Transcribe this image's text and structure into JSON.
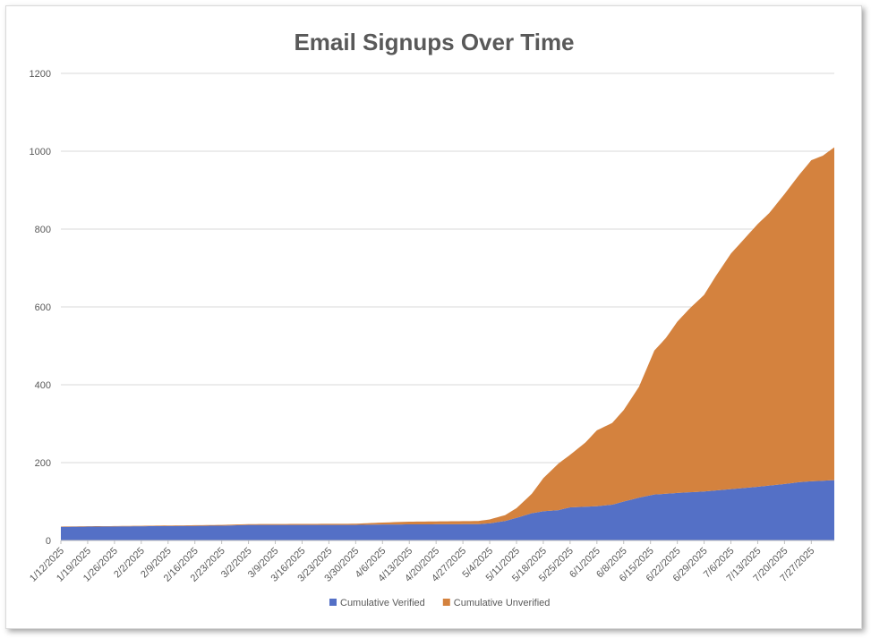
{
  "chart_data": {
    "type": "area",
    "stacked": true,
    "title": "Email Signups Over Time",
    "xlabel": "",
    "ylabel": "",
    "ylim": [
      0,
      1200
    ],
    "y_ticks": [
      0,
      200,
      400,
      600,
      800,
      1000,
      1200
    ],
    "grid": "horizontal",
    "legend": "bottom",
    "x_tick_labels": [
      "1/12/2025",
      "1/19/2025",
      "1/26/2025",
      "2/2/2025",
      "2/9/2025",
      "2/16/2025",
      "2/23/2025",
      "3/2/2025",
      "3/9/2025",
      "3/16/2025",
      "3/23/2025",
      "3/30/2025",
      "4/6/2025",
      "4/13/2025",
      "4/20/2025",
      "4/27/2025",
      "5/4/2025",
      "5/11/2025",
      "5/18/2025",
      "5/25/2025",
      "6/1/2025",
      "6/8/2025",
      "6/15/2025",
      "6/22/2025",
      "6/29/2025",
      "7/6/2025",
      "7/13/2025",
      "7/20/2025",
      "7/27/2025"
    ],
    "x_start": "2025-01-12",
    "x_end": "2025-08-02",
    "series": [
      {
        "name": "Cumulative Verified",
        "color": "#5470c6",
        "points": [
          [
            "2025-01-12",
            35
          ],
          [
            "2025-01-26",
            36
          ],
          [
            "2025-02-09",
            37
          ],
          [
            "2025-02-23",
            38
          ],
          [
            "2025-03-02",
            40
          ],
          [
            "2025-03-30",
            40
          ],
          [
            "2025-04-06",
            41
          ],
          [
            "2025-05-01",
            42
          ],
          [
            "2025-05-04",
            44
          ],
          [
            "2025-05-08",
            50
          ],
          [
            "2025-05-11",
            58
          ],
          [
            "2025-05-15",
            70
          ],
          [
            "2025-05-18",
            75
          ],
          [
            "2025-05-22",
            78
          ],
          [
            "2025-05-25",
            85
          ],
          [
            "2025-06-01",
            88
          ],
          [
            "2025-06-05",
            92
          ],
          [
            "2025-06-08",
            100
          ],
          [
            "2025-06-12",
            110
          ],
          [
            "2025-06-16",
            118
          ],
          [
            "2025-06-22",
            122
          ],
          [
            "2025-06-29",
            126
          ],
          [
            "2025-07-06",
            132
          ],
          [
            "2025-07-13",
            138
          ],
          [
            "2025-07-20",
            145
          ],
          [
            "2025-07-24",
            150
          ],
          [
            "2025-07-27",
            152
          ],
          [
            "2025-08-02",
            155
          ]
        ]
      },
      {
        "name": "Cumulative Unverified",
        "color": "#d4823e",
        "points": [
          [
            "2025-01-12",
            1
          ],
          [
            "2025-01-26",
            1
          ],
          [
            "2025-02-23",
            2
          ],
          [
            "2025-03-02",
            2
          ],
          [
            "2025-03-30",
            3
          ],
          [
            "2025-04-06",
            5
          ],
          [
            "2025-04-13",
            7
          ],
          [
            "2025-05-01",
            8
          ],
          [
            "2025-05-04",
            10
          ],
          [
            "2025-05-08",
            15
          ],
          [
            "2025-05-11",
            25
          ],
          [
            "2025-05-15",
            50
          ],
          [
            "2025-05-18",
            85
          ],
          [
            "2025-05-22",
            120
          ],
          [
            "2025-05-25",
            135
          ],
          [
            "2025-05-29",
            165
          ],
          [
            "2025-06-01",
            195
          ],
          [
            "2025-06-05",
            210
          ],
          [
            "2025-06-08",
            235
          ],
          [
            "2025-06-12",
            285
          ],
          [
            "2025-06-16",
            370
          ],
          [
            "2025-06-19",
            400
          ],
          [
            "2025-06-22",
            440
          ],
          [
            "2025-06-25",
            470
          ],
          [
            "2025-06-29",
            505
          ],
          [
            "2025-07-02",
            550
          ],
          [
            "2025-07-06",
            605
          ],
          [
            "2025-07-09",
            635
          ],
          [
            "2025-07-13",
            675
          ],
          [
            "2025-07-16",
            700
          ],
          [
            "2025-07-20",
            745
          ],
          [
            "2025-07-23",
            780
          ],
          [
            "2025-07-27",
            825
          ],
          [
            "2025-07-30",
            835
          ],
          [
            "2025-08-02",
            855
          ]
        ]
      }
    ]
  }
}
